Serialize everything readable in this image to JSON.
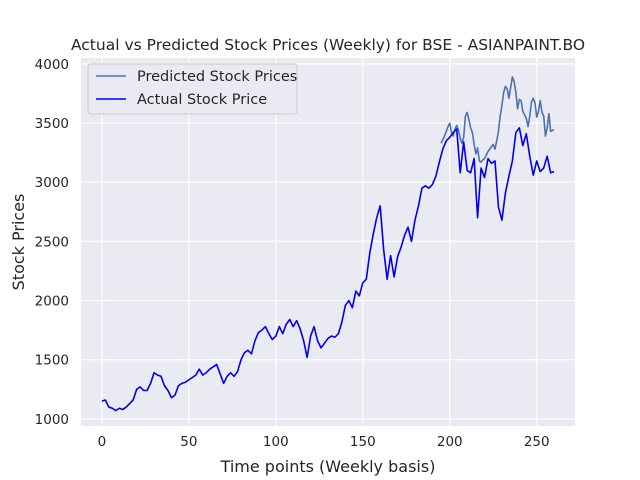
{
  "chart_data": {
    "type": "line",
    "title": "Actual vs Predicted Stock Prices (Weekly) for BSE - ASIANPAINT.BO",
    "xlabel": "Time points (Weekly basis)",
    "ylabel": "Stock Prices",
    "xlim": [
      -12,
      272
    ],
    "ylim": [
      940,
      4050
    ],
    "xticks": [
      0,
      50,
      100,
      150,
      200,
      250
    ],
    "yticks": [
      1000,
      1500,
      2000,
      2500,
      3000,
      3500,
      4000
    ],
    "grid": true,
    "legend_position": "top-left",
    "series": [
      {
        "name": "Predicted Stock Prices",
        "color": "#4c72b0",
        "x": [
          195,
          197,
          199,
          200,
          201,
          202,
          203,
          204,
          205,
          206,
          207,
          208,
          209,
          210,
          211,
          212,
          213,
          214,
          215,
          216,
          217,
          218,
          219,
          220,
          221,
          222,
          223,
          224,
          225,
          226,
          227,
          228,
          229,
          230,
          231,
          232,
          233,
          234,
          235,
          236,
          237,
          238,
          239,
          240,
          241,
          242,
          243,
          244,
          245,
          246,
          247,
          248,
          249,
          250,
          251,
          252,
          253,
          254,
          255,
          256,
          257,
          258,
          259,
          260
        ],
        "values": [
          3330,
          3390,
          3470,
          3500,
          3420,
          3390,
          3450,
          3480,
          3440,
          3370,
          3330,
          3380,
          3560,
          3590,
          3530,
          3460,
          3420,
          3320,
          3240,
          3290,
          3180,
          3170,
          3190,
          3200,
          3230,
          3260,
          3280,
          3300,
          3320,
          3280,
          3350,
          3430,
          3560,
          3650,
          3760,
          3810,
          3790,
          3710,
          3800,
          3890,
          3850,
          3760,
          3620,
          3700,
          3690,
          3600,
          3570,
          3540,
          3470,
          3560,
          3680,
          3710,
          3670,
          3550,
          3600,
          3690,
          3590,
          3560,
          3390,
          3460,
          3580,
          3430,
          3440,
          3440
        ]
      },
      {
        "name": "Actual Stock Price",
        "color": "#0000ee",
        "x": [
          0,
          2,
          4,
          6,
          8,
          10,
          12,
          14,
          16,
          18,
          20,
          22,
          24,
          26,
          28,
          30,
          32,
          34,
          36,
          38,
          40,
          42,
          44,
          46,
          48,
          50,
          52,
          54,
          56,
          58,
          60,
          62,
          64,
          66,
          68,
          70,
          72,
          74,
          76,
          78,
          80,
          82,
          84,
          86,
          88,
          90,
          92,
          94,
          96,
          98,
          100,
          102,
          104,
          106,
          108,
          110,
          112,
          114,
          116,
          118,
          120,
          122,
          124,
          126,
          128,
          130,
          132,
          134,
          136,
          138,
          140,
          142,
          144,
          146,
          148,
          150,
          152,
          154,
          156,
          158,
          160,
          162,
          164,
          166,
          168,
          170,
          172,
          174,
          176,
          178,
          180,
          182,
          184,
          186,
          188,
          190,
          192,
          194,
          196,
          198,
          200,
          202,
          204,
          206,
          208,
          210,
          212,
          214,
          216,
          218,
          220,
          222,
          224,
          226,
          228,
          230,
          232,
          234,
          236,
          238,
          240,
          242,
          244,
          246,
          248,
          250,
          252,
          254,
          256,
          258,
          260
        ],
        "values": [
          1150,
          1160,
          1100,
          1090,
          1070,
          1090,
          1080,
          1100,
          1130,
          1160,
          1250,
          1270,
          1240,
          1240,
          1300,
          1390,
          1370,
          1360,
          1280,
          1240,
          1180,
          1200,
          1280,
          1300,
          1310,
          1330,
          1350,
          1370,
          1420,
          1370,
          1390,
          1420,
          1440,
          1460,
          1380,
          1300,
          1360,
          1390,
          1360,
          1400,
          1500,
          1560,
          1580,
          1550,
          1660,
          1730,
          1750,
          1780,
          1720,
          1670,
          1700,
          1780,
          1720,
          1800,
          1840,
          1780,
          1830,
          1760,
          1660,
          1520,
          1700,
          1780,
          1660,
          1600,
          1640,
          1680,
          1700,
          1690,
          1720,
          1820,
          1960,
          2000,
          1940,
          2080,
          2040,
          2150,
          2180,
          2400,
          2560,
          2700,
          2800,
          2430,
          2180,
          2380,
          2200,
          2370,
          2450,
          2550,
          2620,
          2500,
          2680,
          2800,
          2950,
          2970,
          2950,
          2980,
          3050,
          3170,
          3280,
          3350,
          3380,
          3420,
          3450,
          3080,
          3340,
          3100,
          3080,
          3200,
          2700,
          3120,
          3040,
          3200,
          3160,
          3180,
          2790,
          2680,
          2910,
          3050,
          3180,
          3420,
          3460,
          3310,
          3410,
          3220,
          3060,
          3180,
          3090,
          3120,
          3220,
          3080,
          3090
        ]
      }
    ]
  }
}
